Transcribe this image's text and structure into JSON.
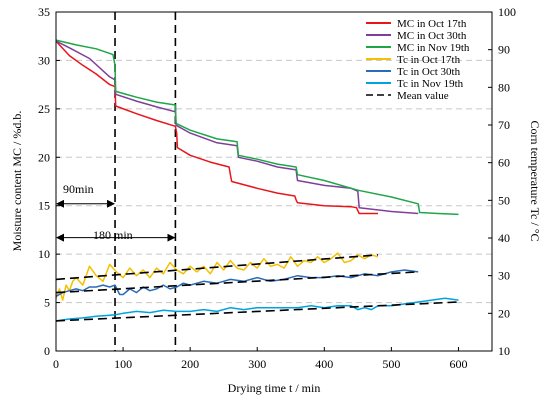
{
  "chart_data": {
    "type": "line",
    "title": "",
    "xlabel": "Drying time t / min",
    "ylabel_left": "Moisture content MC / %d.b.",
    "ylabel_right": "Corn temperature Tc / °C",
    "xlim": [
      0,
      650
    ],
    "ylim_left": [
      0,
      35
    ],
    "ylim_right": [
      10,
      100
    ],
    "x_ticks": [
      0,
      100,
      200,
      300,
      400,
      500,
      600
    ],
    "y_ticks_left": [
      0,
      5,
      10,
      15,
      20,
      25,
      30,
      35
    ],
    "y_ticks_right": [
      10,
      20,
      30,
      40,
      50,
      60,
      70,
      80,
      90,
      100
    ],
    "grid": "horizontal dashed",
    "legend_position": "top-right",
    "series": [
      {
        "name": "MC in Oct 17th",
        "axis": "left",
        "color": "#e8161b",
        "x": [
          0,
          20,
          40,
          60,
          80,
          88,
          89,
          120,
          150,
          178,
          180,
          181,
          200,
          230,
          258,
          260,
          262,
          300,
          330,
          356,
          358,
          360,
          400,
          440,
          448,
          450,
          452,
          480
        ],
        "y": [
          32.0,
          30.5,
          29.5,
          28.6,
          27.5,
          27.3,
          25.3,
          24.5,
          23.8,
          23.2,
          22.5,
          21.0,
          20.2,
          19.5,
          19.0,
          18.2,
          17.5,
          16.8,
          16.3,
          16.0,
          15.6,
          15.3,
          15.0,
          14.9,
          14.8,
          14.5,
          14.2,
          14.2
        ]
      },
      {
        "name": "MC in Oct 30th",
        "axis": "left",
        "color": "#7f3f98",
        "x": [
          0,
          20,
          50,
          80,
          88,
          89,
          120,
          150,
          178,
          179,
          200,
          240,
          270,
          272,
          300,
          330,
          358,
          360,
          400,
          440,
          450,
          452,
          500,
          540
        ],
        "y": [
          32.0,
          31.3,
          30.2,
          28.3,
          28.0,
          26.5,
          25.8,
          25.2,
          24.7,
          23.3,
          22.5,
          21.5,
          21.2,
          20.0,
          19.6,
          19.0,
          18.7,
          17.6,
          17.1,
          16.8,
          16.5,
          14.8,
          14.4,
          14.2
        ]
      },
      {
        "name": "MC in Nov 19th",
        "axis": "left",
        "color": "#1fa649",
        "x": [
          0,
          30,
          60,
          85,
          88,
          89,
          120,
          150,
          178,
          179,
          200,
          240,
          270,
          272,
          300,
          330,
          358,
          360,
          400,
          450,
          500,
          540,
          542,
          570,
          600
        ],
        "y": [
          32.1,
          31.6,
          31.2,
          30.6,
          29.5,
          26.8,
          26.2,
          25.7,
          25.4,
          23.5,
          22.8,
          21.9,
          21.6,
          20.2,
          19.8,
          19.3,
          19.0,
          18.2,
          17.6,
          16.6,
          15.9,
          15.2,
          14.3,
          14.2,
          14.1
        ]
      },
      {
        "name": "Tc in Oct 17th",
        "axis": "right",
        "color": "#f4c000",
        "x": [
          0,
          5,
          10,
          15,
          20,
          25,
          30,
          40,
          50,
          60,
          70,
          80,
          90,
          100,
          110,
          120,
          130,
          140,
          150,
          160,
          170,
          180,
          190,
          200,
          210,
          220,
          230,
          240,
          250,
          260,
          270,
          280,
          290,
          300,
          310,
          320,
          330,
          340,
          350,
          360,
          370,
          380,
          390,
          400,
          410,
          420,
          430,
          440,
          450,
          460,
          470,
          480
        ],
        "y": [
          24.0,
          26.5,
          23.5,
          27.5,
          26.0,
          28.5,
          29.5,
          27.5,
          32.5,
          30.0,
          28.5,
          33.0,
          31.0,
          29.5,
          32.0,
          30.0,
          31.5,
          29.5,
          32.0,
          30.5,
          33.5,
          31.5,
          30.5,
          32.5,
          31.0,
          32.5,
          30.5,
          33.5,
          31.5,
          34.0,
          32.0,
          31.5,
          33.5,
          32.0,
          34.5,
          32.5,
          33.0,
          32.0,
          35.0,
          32.5,
          34.0,
          33.5,
          35.0,
          33.5,
          34.5,
          36.0,
          33.5,
          34.0,
          35.5,
          34.5,
          35.5,
          35.0
        ]
      },
      {
        "name": "Tc in Oct 30th",
        "axis": "right",
        "color": "#2b6cb8",
        "x": [
          0,
          10,
          20,
          30,
          40,
          50,
          60,
          70,
          80,
          88,
          95,
          100,
          110,
          120,
          130,
          140,
          150,
          160,
          170,
          180,
          190,
          200,
          220,
          240,
          260,
          280,
          300,
          320,
          340,
          360,
          380,
          400,
          420,
          440,
          460,
          480,
          500,
          520,
          540
        ],
        "y": [
          24.5,
          25.5,
          26.0,
          26.5,
          26.0,
          27.0,
          27.0,
          27.5,
          27.0,
          27.5,
          25.0,
          25.0,
          26.5,
          25.5,
          27.0,
          26.0,
          26.5,
          27.5,
          26.5,
          27.0,
          28.0,
          27.5,
          28.5,
          28.0,
          29.0,
          28.5,
          29.5,
          28.5,
          29.0,
          30.0,
          29.5,
          29.5,
          30.0,
          29.5,
          30.5,
          30.0,
          31.0,
          31.5,
          31.0
        ]
      },
      {
        "name": "Tc in Nov 19th",
        "axis": "right",
        "color": "#00a3e0",
        "x": [
          0,
          20,
          40,
          60,
          80,
          88,
          100,
          120,
          140,
          160,
          180,
          200,
          220,
          240,
          260,
          280,
          300,
          320,
          340,
          360,
          380,
          400,
          420,
          440,
          450,
          460,
          470,
          480,
          500,
          520,
          540,
          560,
          580,
          600
        ],
        "y": [
          18.0,
          18.5,
          18.8,
          19.2,
          19.5,
          19.6,
          20.0,
          20.5,
          20.2,
          20.8,
          20.5,
          20.5,
          21.0,
          20.5,
          21.5,
          21.0,
          21.5,
          21.5,
          21.5,
          21.5,
          22.0,
          21.5,
          22.0,
          22.0,
          21.0,
          21.5,
          21.0,
          22.0,
          22.0,
          22.5,
          23.0,
          23.5,
          24.0,
          23.5
        ]
      },
      {
        "name": "Mean value",
        "axis": "right",
        "color": "#000000",
        "dash": true,
        "segments": [
          {
            "x": [
              0,
              480
            ],
            "y": [
              29.0,
              35.5
            ]
          },
          {
            "x": [
              0,
              540
            ],
            "y": [
              25.5,
              31.0
            ]
          },
          {
            "x": [
              0,
              600
            ],
            "y": [
              18.0,
              23.0
            ]
          }
        ]
      }
    ],
    "annotations": {
      "vertical_lines_x": [
        88,
        178
      ],
      "arrow_90": {
        "label": "90min",
        "x": [
          0,
          88
        ],
        "y": 15.2
      },
      "arrow_180": {
        "label": "180 min",
        "x": [
          0,
          178
        ],
        "y": 11.7
      }
    }
  }
}
